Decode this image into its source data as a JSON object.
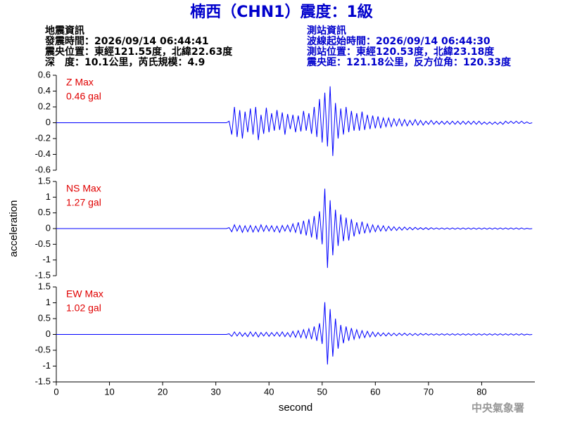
{
  "title": "楠西（CHN1）震度：1級",
  "info_left": [
    "地震資訊",
    "發震時間：2026/09/14 06:44:41",
    "震央位置：東經121.55度，北緯22.63度",
    "深　度：10.1公里，芮氏規模：4.9"
  ],
  "info_right": [
    "測站資訊",
    "波線起始時間：2026/09/14 06:44:30",
    "測站位置：東經120.53度，北緯23.18度",
    "震央距：121.18公里，反方位角：120.33度"
  ],
  "y_label": "acceleration",
  "watermark": "中央氣象署",
  "chart_data": [
    {
      "type": "line",
      "annotation": [
        "Z Max",
        "0.46 gal"
      ],
      "x": [
        0,
        32,
        32.5,
        33,
        33.5,
        34,
        34.5,
        35,
        35.5,
        36,
        36.5,
        37,
        37.5,
        38,
        38.5,
        39,
        39.5,
        40,
        40.5,
        41,
        41.5,
        42,
        42.5,
        43,
        43.5,
        44,
        44.5,
        45,
        45.5,
        46,
        46.5,
        47,
        47.5,
        48,
        48.5,
        49,
        49.5,
        50,
        50.5,
        51,
        51.5,
        52,
        52.5,
        53,
        53.5,
        54,
        54.5,
        55,
        55.5,
        56,
        56.5,
        57,
        57.5,
        58,
        58.5,
        59,
        59.5,
        60,
        60.5,
        61,
        61.5,
        62,
        62.5,
        63,
        63.5,
        64,
        64.5,
        65,
        65.5,
        66,
        66.5,
        67,
        67.5,
        68,
        68.5,
        69,
        69.5,
        70,
        70.5,
        71,
        71.5,
        72,
        72.5,
        73,
        73.5,
        74,
        74.5,
        75,
        75.5,
        76,
        76.5,
        77,
        77.5,
        78,
        78.5,
        79,
        79.5,
        80,
        80.5,
        81,
        81.5,
        82,
        82.5,
        83,
        83.5,
        84,
        84.5,
        85,
        85.5,
        86,
        86.5,
        87,
        87.5,
        88,
        88.5,
        89,
        89.5
      ],
      "series": [
        {
          "color": "#0000ff",
          "values": [
            0,
            0,
            0.02,
            -0.15,
            0.2,
            -0.18,
            0.16,
            -0.2,
            0.14,
            -0.12,
            0.18,
            -0.15,
            0.2,
            -0.22,
            0.1,
            -0.14,
            0.19,
            -0.12,
            0.12,
            -0.1,
            0.16,
            -0.09,
            0.13,
            -0.15,
            0.11,
            -0.08,
            0.1,
            -0.12,
            0.09,
            -0.11,
            0.15,
            -0.1,
            0.12,
            -0.14,
            0.2,
            -0.18,
            0.3,
            -0.25,
            0.38,
            -0.3,
            0.46,
            -0.42,
            0.25,
            -0.2,
            0.18,
            -0.15,
            0.2,
            -0.12,
            0.15,
            -0.1,
            0.12,
            -0.1,
            0.14,
            -0.09,
            0.1,
            -0.08,
            0.09,
            -0.07,
            0.08,
            -0.07,
            0.06,
            -0.05,
            0.06,
            -0.05,
            0.05,
            -0.04,
            0.05,
            -0.04,
            0.04,
            -0.04,
            0.03,
            -0.03,
            0.04,
            -0.03,
            0.03,
            -0.03,
            0.02,
            -0.02,
            0.03,
            -0.02,
            0.02,
            -0.02,
            0.02,
            -0.02,
            0.02,
            -0.02,
            0.02,
            -0.02,
            0.02,
            -0.02,
            0.02,
            -0.02,
            0.02,
            -0.02,
            0.02,
            -0.02,
            0.02,
            -0.02,
            0.01,
            -0.02,
            0.01,
            -0.02,
            0.01,
            -0.02,
            0.01,
            -0.02,
            0.02,
            -0.01,
            0.02,
            -0.01,
            0.02,
            -0.01,
            0.02,
            -0.01,
            0.01,
            -0.01,
            0
          ]
        }
      ],
      "xlim": [
        0,
        90
      ],
      "ylim": [
        -0.6,
        0.6
      ],
      "yticks": [
        -0.6,
        -0.4,
        -0.2,
        0,
        0.2,
        0.4,
        0.6
      ]
    },
    {
      "type": "line",
      "annotation": [
        "NS Max",
        "1.27 gal"
      ],
      "x": [
        0,
        32,
        32.5,
        33,
        33.5,
        34,
        34.5,
        35,
        35.5,
        36,
        36.5,
        37,
        37.5,
        38,
        38.5,
        39,
        39.5,
        40,
        40.5,
        41,
        41.5,
        42,
        42.5,
        43,
        43.5,
        44,
        44.5,
        45,
        45.5,
        46,
        46.5,
        47,
        47.5,
        48,
        48.5,
        49,
        49.5,
        50,
        50.5,
        51,
        51.5,
        52,
        52.5,
        53,
        53.5,
        54,
        54.5,
        55,
        55.5,
        56,
        56.5,
        57,
        57.5,
        58,
        58.5,
        59,
        59.5,
        60,
        60.5,
        61,
        61.5,
        62,
        62.5,
        63,
        63.5,
        64,
        64.5,
        65,
        65.5,
        66,
        66.5,
        67,
        67.5,
        68,
        68.5,
        69,
        69.5,
        70,
        70.5,
        71,
        71.5,
        72,
        72.5,
        73,
        73.5,
        74,
        74.5,
        75,
        75.5,
        76,
        76.5,
        77,
        77.5,
        78,
        78.5,
        79,
        79.5,
        80,
        80.5,
        81,
        81.5,
        82,
        82.5,
        83,
        83.5,
        84,
        84.5,
        85,
        85.5,
        86,
        86.5,
        87,
        87.5,
        88,
        88.5,
        89,
        89.5
      ],
      "series": [
        {
          "color": "#0000ff",
          "values": [
            0,
            0,
            0.03,
            -0.1,
            0.12,
            -0.08,
            0.1,
            -0.12,
            0.09,
            -0.1,
            0.1,
            -0.11,
            0.08,
            -0.1,
            0.12,
            -0.09,
            0.1,
            -0.08,
            0.09,
            -0.1,
            0.08,
            -0.12,
            0.1,
            -0.08,
            0.11,
            -0.1,
            0.15,
            -0.12,
            0.2,
            -0.18,
            0.25,
            -0.22,
            0.3,
            -0.28,
            0.4,
            -0.35,
            0.55,
            -0.5,
            1.27,
            -1.25,
            0.9,
            -0.85,
            0.6,
            -0.55,
            0.45,
            -0.4,
            0.35,
            -0.38,
            0.3,
            -0.25,
            0.2,
            -0.18,
            0.22,
            -0.15,
            0.15,
            -0.12,
            0.12,
            -0.1,
            0.1,
            -0.08,
            0.09,
            -0.08,
            0.07,
            -0.06,
            0.06,
            -0.06,
            0.05,
            -0.05,
            0.05,
            -0.04,
            0.04,
            -0.04,
            0.04,
            -0.03,
            0.03,
            -0.03,
            0.03,
            -0.03,
            0.03,
            -0.02,
            0.02,
            -0.02,
            0.02,
            -0.02,
            0.02,
            -0.02,
            0.02,
            -0.02,
            0.02,
            -0.02,
            0.02,
            -0.02,
            0.02,
            -0.02,
            0.02,
            -0.02,
            0.02,
            -0.02,
            0.02,
            -0.02,
            0.02,
            -0.02,
            0.02,
            -0.02,
            0.02,
            -0.02,
            0.02,
            -0.02,
            0.02,
            -0.02,
            0.02,
            -0.02,
            0.02,
            -0.02,
            0.01,
            -0.01,
            0
          ]
        }
      ],
      "xlim": [
        0,
        90
      ],
      "ylim": [
        -1.5,
        1.5
      ],
      "yticks": [
        -1.5,
        -1,
        -0.5,
        0,
        0.5,
        1,
        1.5
      ]
    },
    {
      "type": "line",
      "annotation": [
        "EW Max",
        "1.02 gal"
      ],
      "x": [
        0,
        32,
        32.5,
        33,
        33.5,
        34,
        34.5,
        35,
        35.5,
        36,
        36.5,
        37,
        37.5,
        38,
        38.5,
        39,
        39.5,
        40,
        40.5,
        41,
        41.5,
        42,
        42.5,
        43,
        43.5,
        44,
        44.5,
        45,
        45.5,
        46,
        46.5,
        47,
        47.5,
        48,
        48.5,
        49,
        49.5,
        50,
        50.5,
        51,
        51.5,
        52,
        52.5,
        53,
        53.5,
        54,
        54.5,
        55,
        55.5,
        56,
        56.5,
        57,
        57.5,
        58,
        58.5,
        59,
        59.5,
        60,
        60.5,
        61,
        61.5,
        62,
        62.5,
        63,
        63.5,
        64,
        64.5,
        65,
        65.5,
        66,
        66.5,
        67,
        67.5,
        68,
        68.5,
        69,
        69.5,
        70,
        70.5,
        71,
        71.5,
        72,
        72.5,
        73,
        73.5,
        74,
        74.5,
        75,
        75.5,
        76,
        76.5,
        77,
        77.5,
        78,
        78.5,
        79,
        79.5,
        80,
        80.5,
        81,
        81.5,
        82,
        82.5,
        83,
        83.5,
        84,
        84.5,
        85,
        85.5,
        86,
        86.5,
        87,
        87.5,
        88,
        88.5,
        89,
        89.5
      ],
      "series": [
        {
          "color": "#0000ff",
          "values": [
            0,
            0,
            0.02,
            -0.06,
            0.08,
            -0.05,
            0.07,
            -0.06,
            0.05,
            -0.07,
            0.08,
            -0.06,
            0.07,
            -0.08,
            0.06,
            -0.05,
            0.07,
            -0.06,
            0.06,
            -0.05,
            0.07,
            -0.06,
            0.08,
            -0.07,
            0.06,
            -0.08,
            0.1,
            -0.09,
            0.12,
            -0.1,
            0.15,
            -0.12,
            0.18,
            -0.15,
            0.25,
            -0.2,
            0.35,
            -0.3,
            1.02,
            -0.95,
            0.8,
            -0.7,
            0.5,
            -0.45,
            0.3,
            -0.28,
            0.25,
            -0.2,
            0.2,
            -0.15,
            0.15,
            -0.12,
            0.12,
            -0.1,
            0.1,
            -0.08,
            0.08,
            -0.07,
            0.06,
            -0.05,
            0.05,
            -0.05,
            0.05,
            -0.04,
            0.04,
            -0.04,
            0.04,
            -0.03,
            0.04,
            -0.03,
            0.03,
            -0.03,
            0.03,
            -0.03,
            0.03,
            -0.02,
            0.03,
            -0.02,
            0.02,
            -0.02,
            0.02,
            -0.02,
            0.02,
            -0.02,
            0.02,
            -0.02,
            0.02,
            -0.02,
            0.02,
            -0.02,
            0.02,
            -0.02,
            0.02,
            -0.02,
            0.02,
            -0.02,
            0.02,
            -0.02,
            0.02,
            -0.02,
            0.02,
            -0.02,
            0.02,
            -0.02,
            0.02,
            -0.02,
            0.02,
            -0.02,
            0.02,
            -0.02,
            0.02,
            -0.02,
            0.02,
            -0.02,
            0.01,
            -0.01,
            0
          ]
        }
      ],
      "xlim": [
        0,
        90
      ],
      "ylim": [
        -1.5,
        1.5
      ],
      "yticks": [
        -1.5,
        -1,
        -0.5,
        0,
        0.5,
        1,
        1.5
      ],
      "xticks": [
        0,
        10,
        20,
        30,
        40,
        50,
        60,
        70,
        80
      ],
      "x_label": "second"
    }
  ]
}
